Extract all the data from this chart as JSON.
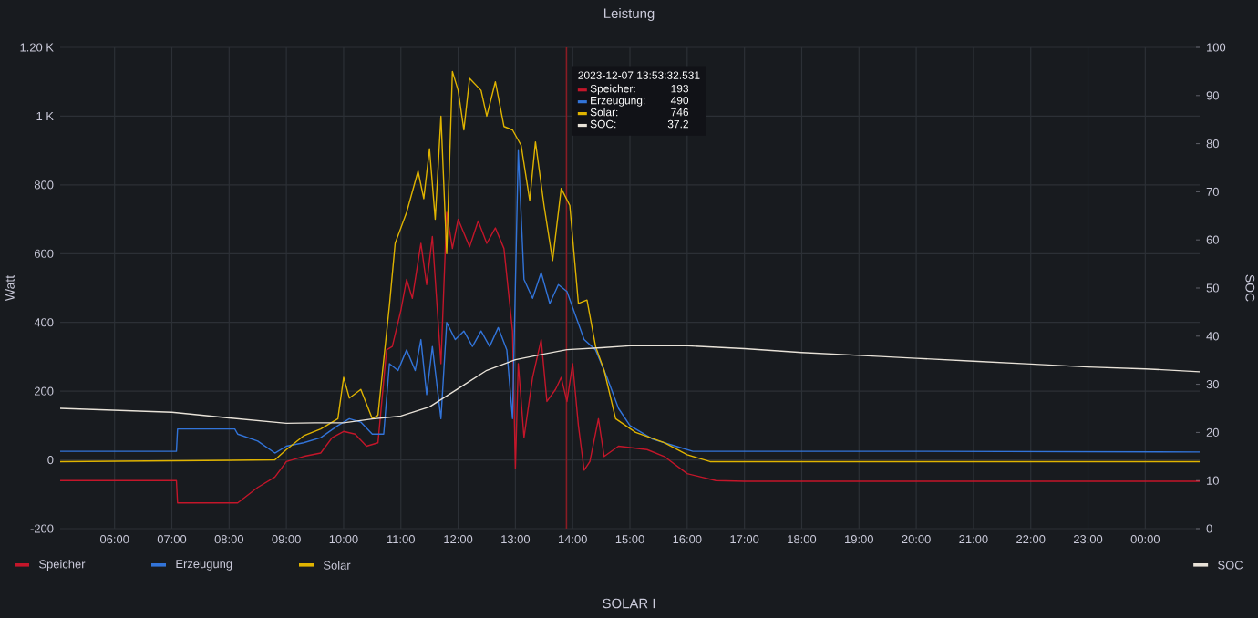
{
  "chart_data": {
    "type": "line",
    "title": "Leistung",
    "ylabel": "Watt",
    "y2label": "SOC",
    "xlim": [
      5.05,
      24.95
    ],
    "xticks": [
      {
        "value": 6,
        "label": "06:00"
      },
      {
        "value": 7,
        "label": "07:00"
      },
      {
        "value": 8,
        "label": "08:00"
      },
      {
        "value": 9,
        "label": "09:00"
      },
      {
        "value": 10,
        "label": "10:00"
      },
      {
        "value": 11,
        "label": "11:00"
      },
      {
        "value": 12,
        "label": "12:00"
      },
      {
        "value": 13,
        "label": "13:00"
      },
      {
        "value": 14,
        "label": "14:00"
      },
      {
        "value": 15,
        "label": "15:00"
      },
      {
        "value": 16,
        "label": "16:00"
      },
      {
        "value": 17,
        "label": "17:00"
      },
      {
        "value": 18,
        "label": "18:00"
      },
      {
        "value": 19,
        "label": "19:00"
      },
      {
        "value": 20,
        "label": "20:00"
      },
      {
        "value": 21,
        "label": "21:00"
      },
      {
        "value": 22,
        "label": "22:00"
      },
      {
        "value": 23,
        "label": "23:00"
      },
      {
        "value": 24,
        "label": "00:00"
      }
    ],
    "ylim": [
      -200,
      1200
    ],
    "yticks": [
      -200,
      0,
      200,
      400,
      600,
      800,
      {
        "value": 1000,
        "label": "1 K"
      },
      {
        "value": 1200,
        "label": "1.20 K"
      }
    ],
    "y2lim": [
      0,
      100
    ],
    "y2ticks": [
      0,
      10,
      20,
      30,
      40,
      50,
      60,
      70,
      80,
      90,
      100
    ],
    "grid": true,
    "legend": "bottom",
    "marker": "none",
    "series": [
      {
        "name": "Speicher",
        "color": "#c4162a",
        "x": [
          5.05,
          7.08,
          7.1,
          8.15,
          8.5,
          8.8,
          9.0,
          9.3,
          9.6,
          9.8,
          10.0,
          10.2,
          10.4,
          10.6,
          10.75,
          10.85,
          11.0,
          11.1,
          11.2,
          11.35,
          11.45,
          11.55,
          11.7,
          11.8,
          11.9,
          12.0,
          12.2,
          12.35,
          12.5,
          12.65,
          12.8,
          12.95,
          13.0,
          13.05,
          13.15,
          13.3,
          13.45,
          13.55,
          13.7,
          13.8,
          13.9,
          14.0,
          14.1,
          14.2,
          14.3,
          14.45,
          14.55,
          14.8,
          15.3,
          15.6,
          16.0,
          16.5,
          17.0,
          20.0,
          24.95
        ],
        "values": [
          -60,
          -60,
          -125,
          -125,
          -80,
          -50,
          -5,
          10,
          20,
          65,
          83,
          75,
          40,
          50,
          320,
          330,
          435,
          525,
          470,
          630,
          510,
          650,
          280,
          720,
          615,
          700,
          620,
          695,
          630,
          675,
          615,
          375,
          -25,
          280,
          65,
          240,
          350,
          170,
          205,
          240,
          170,
          280,
          100,
          -30,
          -5,
          120,
          10,
          40,
          30,
          10,
          -40,
          -60,
          -62,
          -62,
          -62
        ]
      },
      {
        "name": "Erzeugung",
        "color": "#3274d9",
        "x": [
          5.05,
          7.08,
          7.1,
          8.1,
          8.15,
          8.5,
          8.8,
          9.0,
          9.3,
          9.6,
          9.9,
          10.1,
          10.3,
          10.5,
          10.7,
          10.8,
          10.95,
          11.1,
          11.25,
          11.35,
          11.45,
          11.55,
          11.7,
          11.8,
          11.95,
          12.1,
          12.25,
          12.4,
          12.55,
          12.7,
          12.85,
          12.95,
          13.05,
          13.15,
          13.3,
          13.45,
          13.6,
          13.75,
          13.9,
          14.05,
          14.2,
          14.4,
          14.6,
          14.8,
          15.0,
          15.4,
          15.8,
          16.1,
          20.0,
          24.95
        ],
        "values": [
          25,
          25,
          90,
          90,
          75,
          55,
          20,
          40,
          50,
          65,
          100,
          120,
          110,
          75,
          75,
          280,
          260,
          320,
          260,
          350,
          190,
          330,
          120,
          400,
          350,
          375,
          330,
          375,
          330,
          385,
          320,
          120,
          900,
          525,
          470,
          545,
          455,
          510,
          490,
          420,
          350,
          320,
          240,
          150,
          100,
          60,
          40,
          25,
          25,
          23
        ]
      },
      {
        "name": "Solar",
        "color": "#e0b400",
        "x": [
          5.05,
          8.8,
          9.0,
          9.3,
          9.6,
          9.9,
          10.0,
          10.1,
          10.3,
          10.5,
          10.6,
          10.8,
          10.9,
          11.1,
          11.3,
          11.4,
          11.5,
          11.6,
          11.7,
          11.8,
          11.9,
          12.0,
          12.1,
          12.2,
          12.4,
          12.5,
          12.65,
          12.8,
          12.95,
          13.1,
          13.25,
          13.35,
          13.5,
          13.65,
          13.8,
          13.95,
          14.1,
          14.25,
          14.4,
          14.55,
          14.75,
          15.1,
          15.6,
          16.0,
          16.4,
          20.0,
          24.95
        ],
        "values": [
          -5,
          0,
          30,
          70,
          90,
          120,
          240,
          180,
          205,
          120,
          130,
          450,
          630,
          720,
          840,
          760,
          905,
          700,
          1000,
          600,
          1130,
          1075,
          960,
          1110,
          1075,
          1000,
          1100,
          970,
          960,
          915,
          755,
          925,
          740,
          580,
          790,
          740,
          455,
          465,
          330,
          260,
          120,
          80,
          50,
          15,
          -5,
          -5,
          -5
        ]
      },
      {
        "name": "SOC",
        "color": "#e8e2d8",
        "axis": "y2",
        "x": [
          5.05,
          7.0,
          8.0,
          9.0,
          9.5,
          10.0,
          10.5,
          11.0,
          11.5,
          12.0,
          12.5,
          13.0,
          13.5,
          13.9,
          14.5,
          15.0,
          16.0,
          17.0,
          18.0,
          19.0,
          20.0,
          21.0,
          22.0,
          23.0,
          24.0,
          24.95
        ],
        "values": [
          25,
          24.2,
          23,
          21.9,
          22,
          22,
          22.8,
          23.4,
          25.3,
          29.1,
          32.9,
          35.1,
          36.3,
          37.2,
          37.6,
          38,
          38,
          37.4,
          36.6,
          36,
          35.4,
          34.8,
          34.2,
          33.6,
          33.2,
          32.6
        ]
      }
    ],
    "ref_lines": [
      {
        "axis": "x",
        "value": 13.892,
        "color": "#8b1c24"
      }
    ],
    "annotations": [
      "2023-12-07 13:53:32.531",
      "Speicher:",
      "193",
      "Erzeugung:",
      "490",
      "Solar:",
      "746",
      "SOC:",
      "37.2",
      "SOLAR I"
    ]
  }
}
